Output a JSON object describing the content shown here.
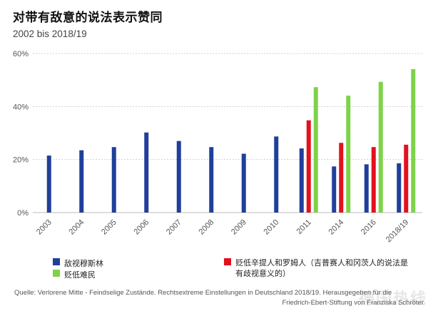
{
  "chart_data": {
    "type": "bar",
    "title": "对带有敌意的说法表示赞同",
    "subtitle": "2002 bis 2018/19",
    "categories": [
      "2003",
      "2004",
      "2005",
      "2006",
      "2007",
      "2008",
      "2009",
      "2010",
      "2011",
      "2014",
      "2016",
      "2018/19"
    ],
    "series": [
      {
        "name": "敌视穆斯林",
        "color": "#1f3f9a",
        "values": [
          21.5,
          23.5,
          24.7,
          30.2,
          27.0,
          24.7,
          22.2,
          28.7,
          24.2,
          17.4,
          18.2,
          18.6
        ]
      },
      {
        "name": "贬低辛提人和罗姆人（吉普赛人和冈茨人的说法是有歧视意义的）",
        "color": "#e3101e",
        "values": [
          null,
          null,
          null,
          null,
          null,
          null,
          null,
          null,
          34.8,
          26.3,
          24.7,
          25.6
        ]
      },
      {
        "name": "贬低难民",
        "color": "#7ed349",
        "values": [
          null,
          null,
          null,
          null,
          null,
          null,
          null,
          null,
          47.3,
          44.1,
          49.3,
          54.1
        ]
      }
    ],
    "ylim": [
      0,
      60
    ],
    "yticks": [
      "0%",
      "20%",
      "40%",
      "60%"
    ],
    "ytick_values": [
      0,
      20,
      40,
      60
    ],
    "xlabel": "",
    "ylabel": "",
    "grid": true
  },
  "legend": [
    {
      "label": "敌视穆斯林",
      "color": "#1f3f9a"
    },
    {
      "label": "贬低难民",
      "color": "#7ed349"
    },
    {
      "label": "贬低辛提人和罗姆人（吉普赛人和冈茨人的说法是有歧视意义的）",
      "color": "#e3101e"
    }
  ],
  "source": {
    "line1": "Quelle: Verlorene Mitte - Feindselige Zustände. Rechtsextreme Einstellungen in Deutschland 2018/19. Herausgegeben für die",
    "line2": "Friedrich-Ebert-Stiftung von Franziska Schröter"
  },
  "watermark": "德国热线"
}
